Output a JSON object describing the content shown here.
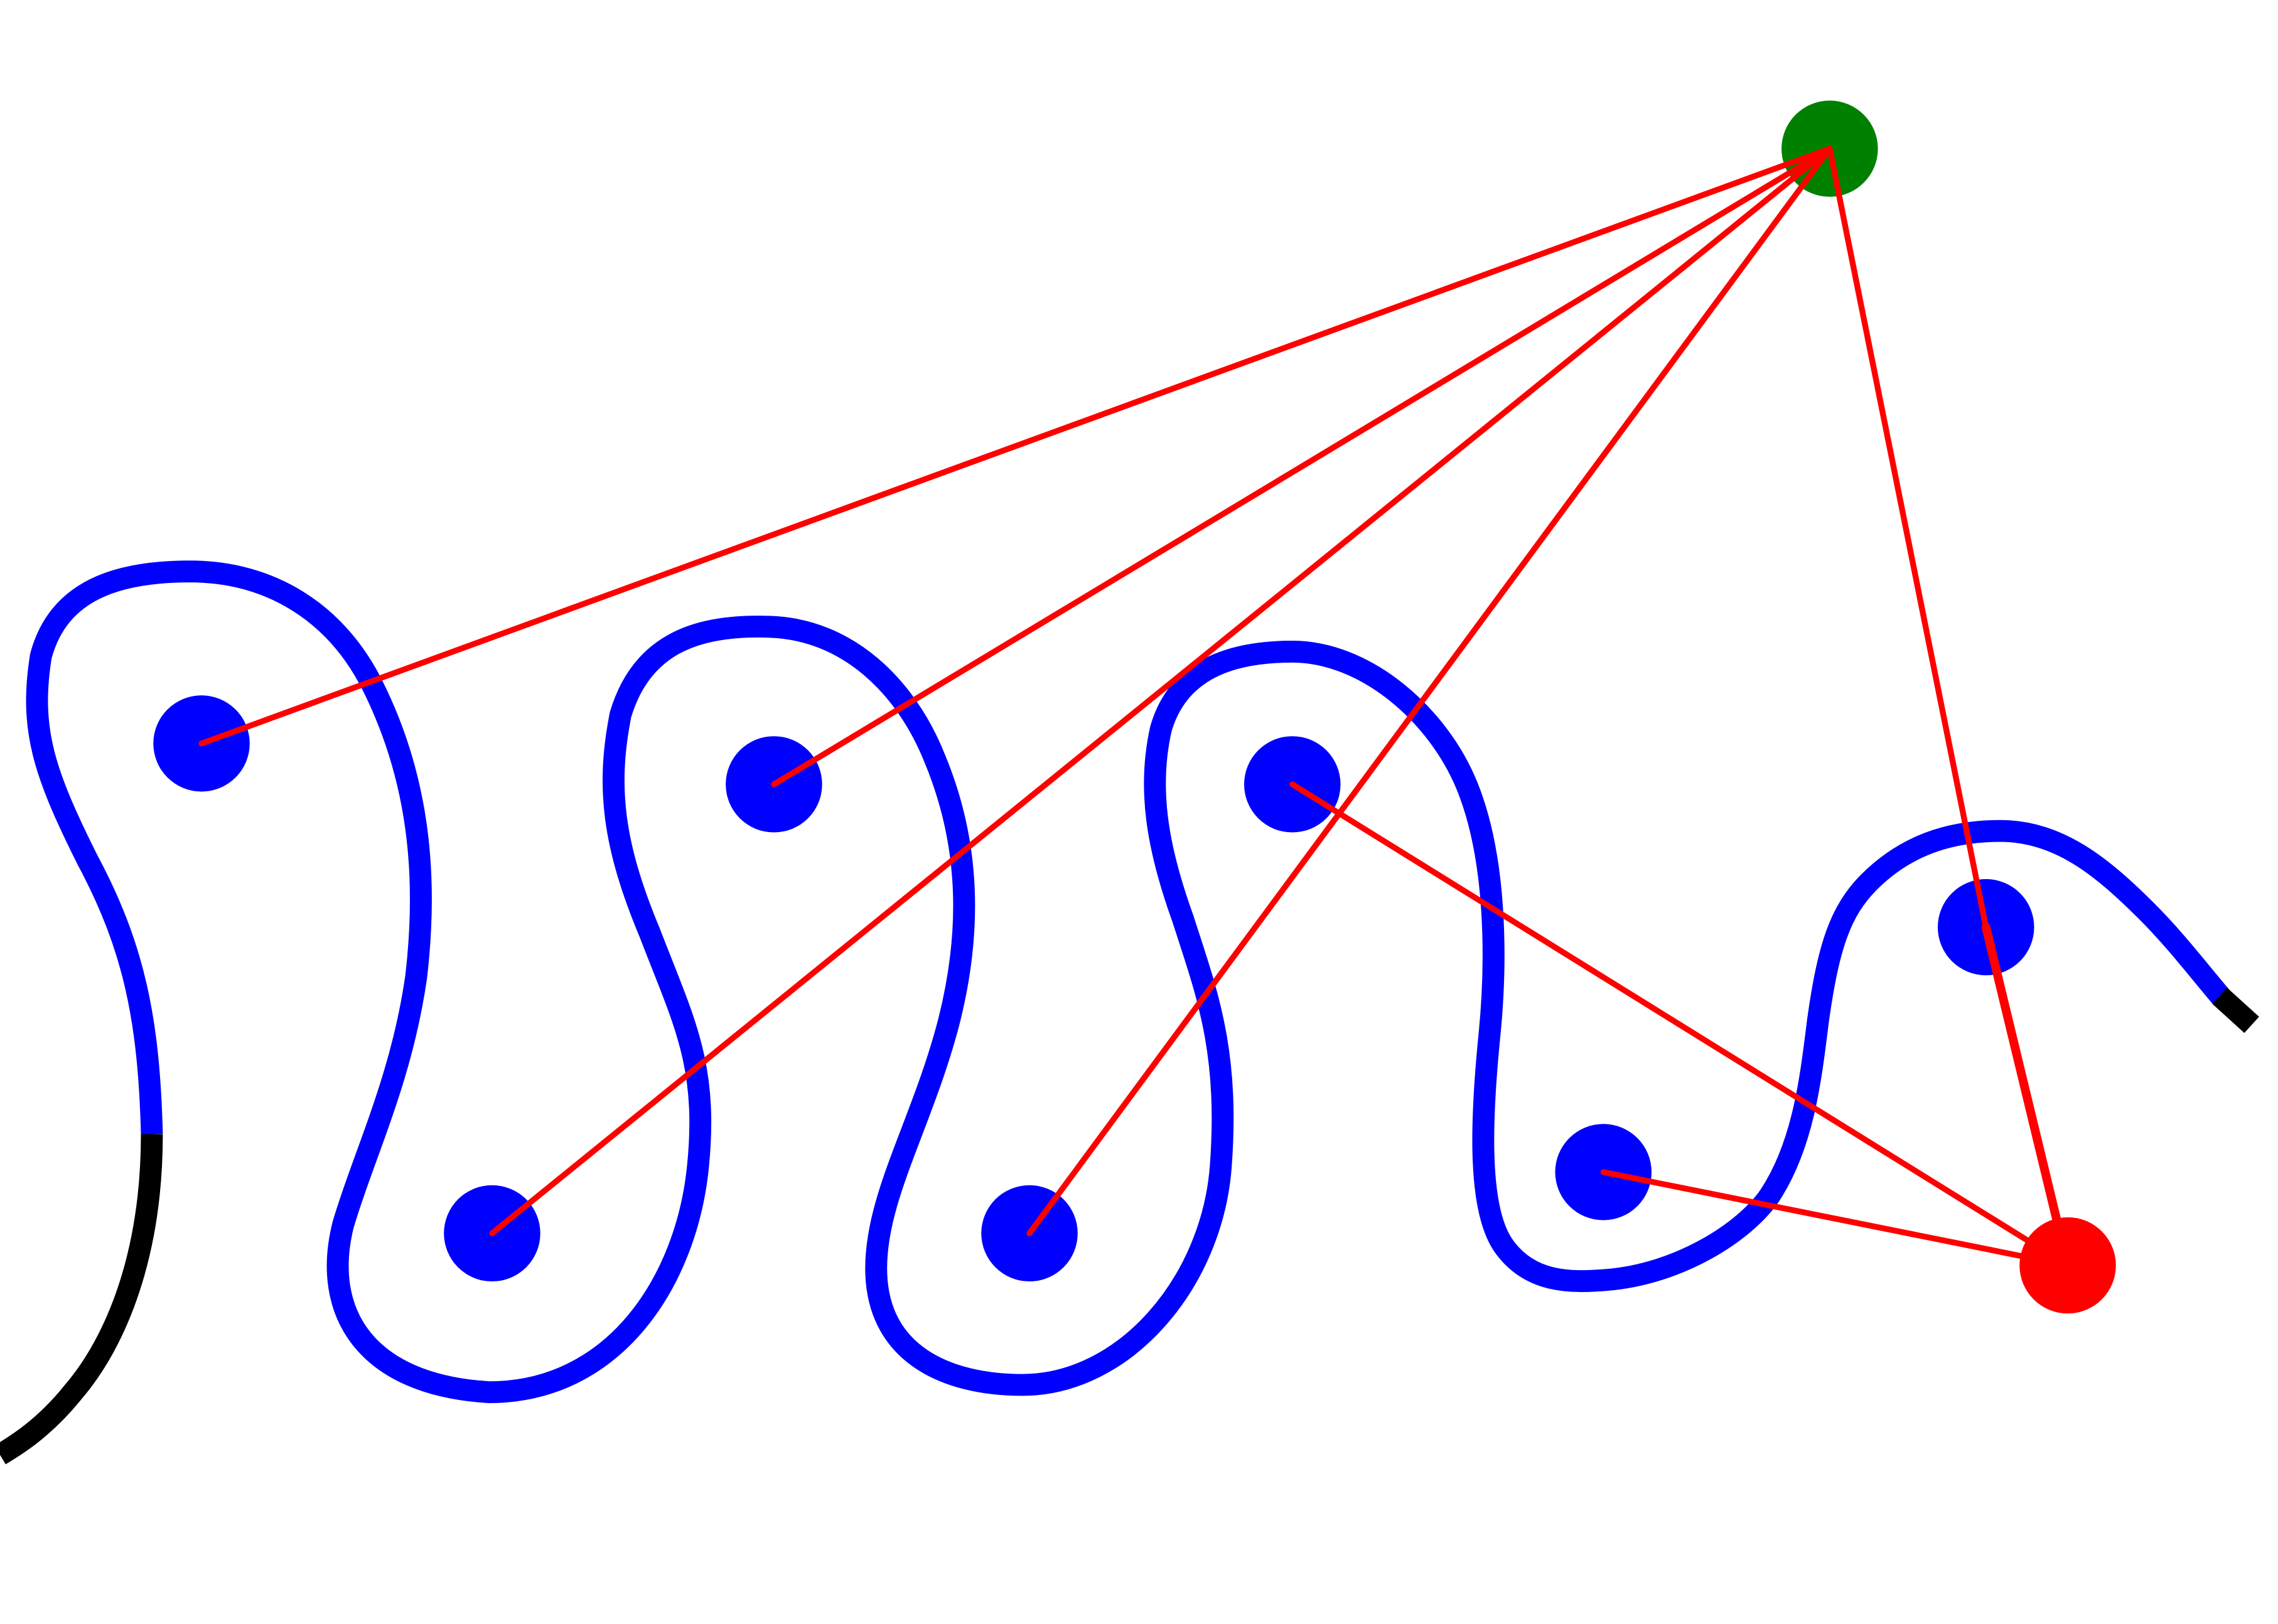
{
  "colors": {
    "background": "#ffffff",
    "path": "#0000ff",
    "path_end": "#000000",
    "link": "#ff0000",
    "hub_top": "#008000",
    "hub_bottom": "#ff0000",
    "node": "#0000ff"
  },
  "diagram": {
    "nodes": [
      {
        "id": "n1",
        "role": "node"
      },
      {
        "id": "n2",
        "role": "node"
      },
      {
        "id": "n3",
        "role": "node"
      },
      {
        "id": "n4",
        "role": "node"
      },
      {
        "id": "n5",
        "role": "node"
      },
      {
        "id": "n6",
        "role": "node"
      },
      {
        "id": "n7",
        "role": "node"
      },
      {
        "id": "n8",
        "role": "node"
      },
      {
        "id": "hub-green",
        "role": "hub"
      },
      {
        "id": "hub-red",
        "role": "hub"
      }
    ],
    "links": [
      {
        "from": "hub-green",
        "to": "n1"
      },
      {
        "from": "hub-green",
        "to": "n3"
      },
      {
        "from": "hub-green",
        "to": "n2"
      },
      {
        "from": "hub-green",
        "to": "n4"
      },
      {
        "from": "hub-green",
        "to": "n8"
      },
      {
        "from": "hub-red",
        "to": "n5"
      },
      {
        "from": "hub-red",
        "to": "n7"
      },
      {
        "from": "hub-red",
        "to": "n8"
      }
    ]
  }
}
